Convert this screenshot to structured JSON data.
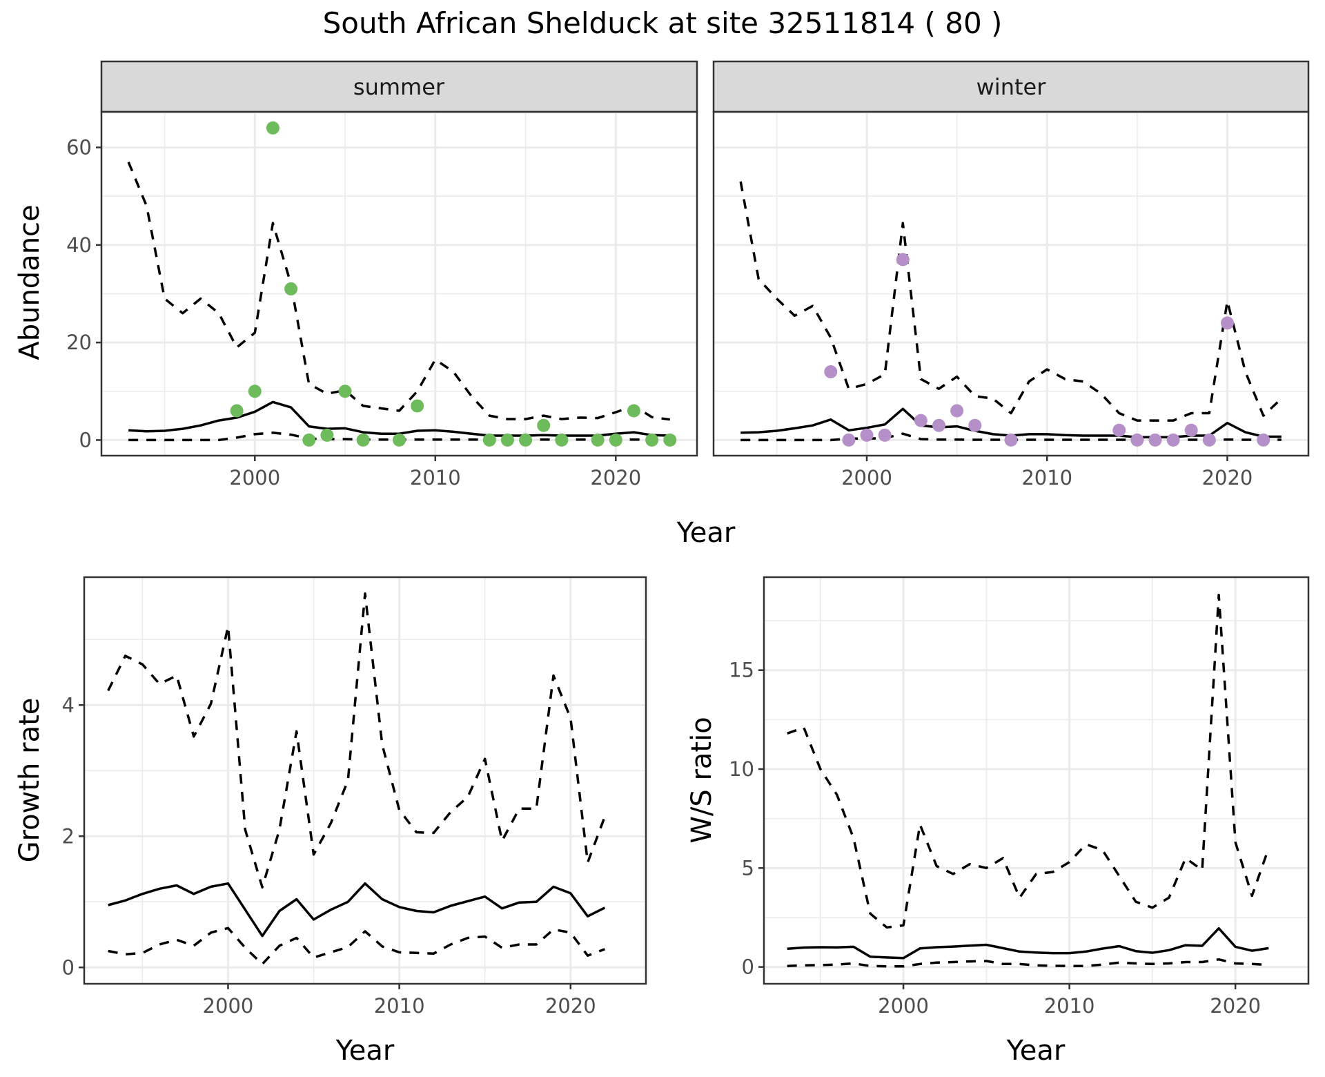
{
  "chart_data": [
    {
      "id": "abundance-summer",
      "type": "line",
      "title": "South African Shelduck at site 32511814 ( 80 )",
      "facet": "summer",
      "xlabel": "Year",
      "ylabel": "Abundance",
      "xlim": [
        1991.5,
        2024.5
      ],
      "ylim": [
        -3.2,
        67.3
      ],
      "xticks": [
        2000,
        2010,
        2020
      ],
      "yticks": [
        0,
        20,
        40,
        60
      ],
      "grid": true,
      "point_color": "#6dbb5a",
      "x": [
        1993,
        1994,
        1995,
        1996,
        1997,
        1998,
        1999,
        2000,
        2001,
        2002,
        2003,
        2004,
        2005,
        2006,
        2007,
        2008,
        2009,
        2010,
        2011,
        2012,
        2013,
        2014,
        2015,
        2016,
        2017,
        2018,
        2019,
        2020,
        2021,
        2022,
        2023
      ],
      "series": [
        {
          "name": "mean",
          "style": "solid",
          "values": [
            2.0,
            1.8,
            1.9,
            2.3,
            3.0,
            4.0,
            4.6,
            5.8,
            7.8,
            6.7,
            2.8,
            2.3,
            2.4,
            1.6,
            1.3,
            1.3,
            1.9,
            2.0,
            1.7,
            1.3,
            0.9,
            0.9,
            0.9,
            1.0,
            0.9,
            0.9,
            0.9,
            1.3,
            1.6,
            1.0,
            0.9
          ]
        },
        {
          "name": "upper",
          "style": "dashed",
          "values": [
            57,
            48,
            29,
            26,
            29,
            26,
            19,
            22,
            44.5,
            32,
            11.5,
            9.5,
            10.2,
            7,
            6.5,
            6,
            10,
            16.5,
            14,
            9,
            5,
            4.3,
            4.3,
            5,
            4.3,
            4.6,
            4.5,
            5.7,
            7,
            4.7,
            4.2
          ]
        },
        {
          "name": "lower",
          "style": "dashed",
          "values": [
            0,
            0,
            0,
            0,
            0,
            0,
            0.5,
            1.2,
            1.5,
            1.1,
            0.3,
            0.2,
            0.2,
            0.1,
            0.1,
            0.1,
            0.1,
            0.1,
            0.1,
            0.1,
            0.1,
            0.1,
            0.1,
            0.1,
            0.1,
            0.1,
            0.1,
            0.1,
            0.1,
            0.1,
            0.1
          ]
        }
      ],
      "points": {
        "name": "observed counts",
        "x": [
          1999,
          2000,
          2001,
          2002,
          2003,
          2004,
          2005,
          2006,
          2008,
          2009,
          2013,
          2014,
          2015,
          2016,
          2017,
          2019,
          2020,
          2021,
          2022,
          2023
        ],
        "y": [
          6,
          10,
          64,
          31,
          0,
          1,
          10,
          0,
          0,
          7,
          0,
          0,
          0,
          3,
          0,
          0,
          0,
          6,
          0,
          0
        ]
      }
    },
    {
      "id": "abundance-winter",
      "type": "line",
      "facet": "winter",
      "xlabel": "Year",
      "ylabel": "Abundance",
      "xlim": [
        1991.5,
        2024.5
      ],
      "ylim": [
        -3.2,
        67.3
      ],
      "xticks": [
        2000,
        2010,
        2020
      ],
      "yticks": [
        0,
        20,
        40,
        60
      ],
      "grid": true,
      "point_color": "#b58fc7",
      "x": [
        1993,
        1994,
        1995,
        1996,
        1997,
        1998,
        1999,
        2000,
        2001,
        2002,
        2003,
        2004,
        2005,
        2006,
        2007,
        2008,
        2009,
        2010,
        2011,
        2012,
        2013,
        2014,
        2015,
        2016,
        2017,
        2018,
        2019,
        2020,
        2021,
        2022,
        2023
      ],
      "series": [
        {
          "name": "mean",
          "style": "solid",
          "values": [
            1.5,
            1.6,
            1.9,
            2.4,
            3.0,
            4.2,
            2.0,
            2.5,
            3.2,
            6.4,
            3.0,
            2.6,
            2.8,
            1.9,
            1.2,
            0.9,
            1.2,
            1.2,
            1.0,
            0.9,
            0.9,
            0.9,
            0.6,
            0.6,
            0.6,
            0.9,
            0.9,
            3.5,
            1.6,
            0.7,
            0.7
          ]
        },
        {
          "name": "upper",
          "style": "dashed",
          "values": [
            53,
            33,
            29,
            25.5,
            27.5,
            21,
            10.5,
            11.5,
            13.5,
            44.5,
            12.5,
            10.5,
            13,
            9,
            8.5,
            5.5,
            12,
            14.5,
            12.5,
            12,
            9.5,
            5.5,
            4,
            4,
            4,
            5.5,
            5.5,
            28.5,
            14,
            5,
            8.5
          ]
        },
        {
          "name": "lower",
          "style": "dashed",
          "values": [
            0,
            0,
            0,
            0,
            0,
            0,
            0.3,
            0.3,
            0.4,
            1.3,
            0.2,
            0.1,
            0.1,
            0.05,
            0.05,
            0.05,
            0.05,
            0.05,
            0.05,
            0.05,
            0.05,
            0.05,
            0.05,
            0.05,
            0.05,
            0.05,
            0.05,
            0.1,
            0.05,
            0.05,
            0.05
          ]
        }
      ],
      "points": {
        "name": "observed counts",
        "x": [
          1998,
          1999,
          2000,
          2001,
          2002,
          2003,
          2004,
          2005,
          2006,
          2008,
          2014,
          2015,
          2016,
          2017,
          2018,
          2019,
          2020,
          2022
        ],
        "y": [
          14,
          0,
          1,
          1,
          37,
          4,
          3,
          6,
          3,
          0,
          2,
          0,
          0,
          0,
          2,
          0,
          24,
          0
        ]
      }
    },
    {
      "id": "growth-rate",
      "type": "line",
      "xlabel": "Year",
      "ylabel": "Growth rate",
      "xlim": [
        1991.6,
        2024.4
      ],
      "ylim": [
        -0.25,
        5.95
      ],
      "xticks": [
        2000,
        2010,
        2020
      ],
      "yticks": [
        0,
        2,
        4
      ],
      "grid": true,
      "x": [
        1993,
        1994,
        1995,
        1996,
        1997,
        1998,
        1999,
        2000,
        2001,
        2002,
        2003,
        2004,
        2005,
        2006,
        2007,
        2008,
        2009,
        2010,
        2011,
        2012,
        2013,
        2014,
        2015,
        2016,
        2017,
        2018,
        2019,
        2020,
        2021,
        2022
      ],
      "series": [
        {
          "name": "mean",
          "style": "solid",
          "values": [
            0.95,
            1.02,
            1.12,
            1.2,
            1.25,
            1.12,
            1.23,
            1.28,
            0.88,
            0.48,
            0.86,
            1.04,
            0.73,
            0.88,
            1.0,
            1.28,
            1.04,
            0.92,
            0.86,
            0.84,
            0.94,
            1.01,
            1.08,
            0.9,
            0.99,
            1.0,
            1.23,
            1.13,
            0.78,
            0.91
          ]
        },
        {
          "name": "upper",
          "style": "dashed",
          "values": [
            4.22,
            4.75,
            4.62,
            4.32,
            4.45,
            3.52,
            4.02,
            5.2,
            2.1,
            1.22,
            2.1,
            3.6,
            1.72,
            2.2,
            2.85,
            5.7,
            3.4,
            2.4,
            2.06,
            2.05,
            2.37,
            2.6,
            3.18,
            1.93,
            2.42,
            2.42,
            4.45,
            3.8,
            1.6,
            2.3
          ]
        },
        {
          "name": "lower",
          "style": "dashed",
          "values": [
            0.25,
            0.2,
            0.22,
            0.35,
            0.42,
            0.33,
            0.53,
            0.6,
            0.3,
            0.05,
            0.33,
            0.45,
            0.15,
            0.23,
            0.31,
            0.55,
            0.32,
            0.23,
            0.22,
            0.21,
            0.35,
            0.45,
            0.47,
            0.3,
            0.35,
            0.35,
            0.58,
            0.53,
            0.18,
            0.28
          ]
        }
      ]
    },
    {
      "id": "ws-ratio",
      "type": "line",
      "xlabel": "Year",
      "ylabel": "W/S ratio",
      "xlim": [
        1991.6,
        2024.4
      ],
      "ylim": [
        -0.85,
        19.7
      ],
      "xticks": [
        2000,
        2010,
        2020
      ],
      "yticks": [
        0,
        5,
        10,
        15
      ],
      "grid": true,
      "x": [
        1993,
        1994,
        1995,
        1996,
        1997,
        1998,
        1999,
        2000,
        2001,
        2002,
        2003,
        2004,
        2005,
        2006,
        2007,
        2008,
        2009,
        2010,
        2011,
        2012,
        2013,
        2014,
        2015,
        2016,
        2017,
        2018,
        2019,
        2020,
        2021,
        2022
      ],
      "series": [
        {
          "name": "mean",
          "style": "solid",
          "values": [
            0.92,
            0.98,
            1.0,
            0.99,
            1.02,
            0.52,
            0.48,
            0.45,
            0.94,
            1.0,
            1.03,
            1.08,
            1.12,
            0.95,
            0.78,
            0.73,
            0.7,
            0.7,
            0.78,
            0.93,
            1.05,
            0.8,
            0.72,
            0.85,
            1.1,
            1.07,
            1.95,
            1.02,
            0.82,
            0.95
          ]
        },
        {
          "name": "upper",
          "style": "dashed",
          "values": [
            11.8,
            12.1,
            10.0,
            8.7,
            6.5,
            2.7,
            2.0,
            2.1,
            7.2,
            5.1,
            4.7,
            5.2,
            5.0,
            5.5,
            3.5,
            4.7,
            4.8,
            5.3,
            6.2,
            5.9,
            4.6,
            3.3,
            3.0,
            3.5,
            5.5,
            4.9,
            18.8,
            6.3,
            3.6,
            6.0
          ]
        },
        {
          "name": "lower",
          "style": "dashed",
          "values": [
            0.05,
            0.08,
            0.1,
            0.12,
            0.18,
            0.05,
            0.03,
            0.03,
            0.15,
            0.22,
            0.25,
            0.28,
            0.3,
            0.15,
            0.15,
            0.08,
            0.06,
            0.05,
            0.05,
            0.12,
            0.22,
            0.18,
            0.15,
            0.18,
            0.25,
            0.25,
            0.38,
            0.18,
            0.15,
            0.1
          ]
        }
      ]
    }
  ]
}
